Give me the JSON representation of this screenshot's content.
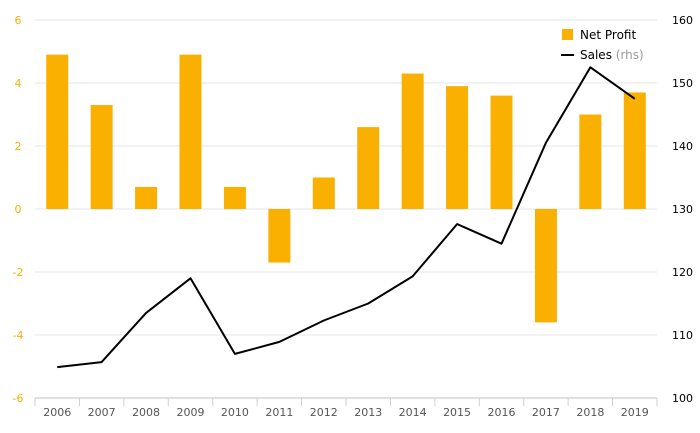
{
  "chart_data": {
    "type": "bar",
    "categories": [
      "2006",
      "2007",
      "2008",
      "2009",
      "2010",
      "2011",
      "2012",
      "2013",
      "2014",
      "2015",
      "2016",
      "2017",
      "2018",
      "2019"
    ],
    "series": [
      {
        "name": "Net Profit",
        "type": "bar",
        "axis": "left",
        "values": [
          4.9,
          3.3,
          0.7,
          4.9,
          0.7,
          -1.7,
          1.0,
          2.6,
          4.3,
          3.9,
          3.6,
          -3.6,
          3.0,
          3.7
        ]
      },
      {
        "name": "Sales",
        "name_suffix": "(rhs)",
        "type": "line",
        "axis": "right",
        "values": [
          104.9,
          105.7,
          113.5,
          119.0,
          107.0,
          108.9,
          112.3,
          115.0,
          119.3,
          127.6,
          124.5,
          140.5,
          152.5,
          147.5
        ]
      }
    ],
    "y_left": {
      "ylim": [
        -6,
        6
      ],
      "ticks": [
        "-6",
        "-4",
        "-2",
        "0",
        "2",
        "4",
        "6"
      ]
    },
    "y_right": {
      "ylim": [
        100,
        160
      ],
      "ticks": [
        "100",
        "110",
        "120",
        "130",
        "140",
        "150",
        "160"
      ]
    },
    "grid": true,
    "legend_position": "top-right",
    "colors": {
      "bar": "#f9b000",
      "line": "#000000",
      "grid": "#e6e6e6",
      "left_axis_text": "#f9b000"
    }
  }
}
